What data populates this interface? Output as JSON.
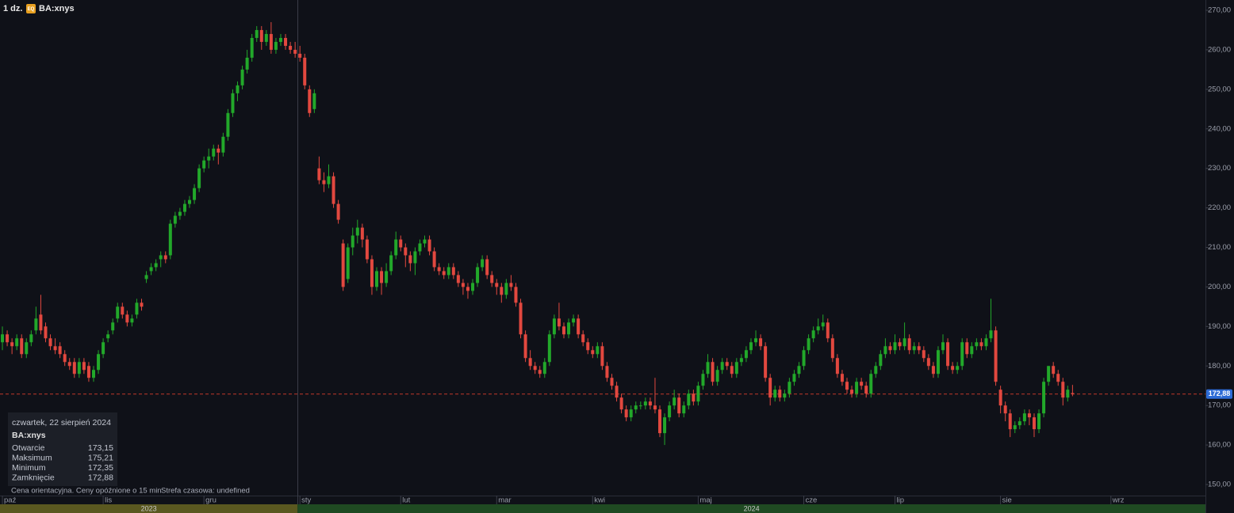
{
  "chart_data": {
    "type": "candlestick",
    "interval": "1 dz.",
    "badge": "EQ",
    "symbol": "BA:xnys",
    "up_color": "#22a82a",
    "down_color": "#e2483f",
    "ylim": [
      147.2,
      272.6
    ],
    "yticks": [
      {
        "value": 150,
        "label": "150,00"
      },
      {
        "value": 160,
        "label": "160,00"
      },
      {
        "value": 170,
        "label": "170,00"
      },
      {
        "value": 180,
        "label": "180,00"
      },
      {
        "value": 190,
        "label": "190,00"
      },
      {
        "value": 200,
        "label": "200,00"
      },
      {
        "value": 210,
        "label": "210,00"
      },
      {
        "value": 220,
        "label": "220,00"
      },
      {
        "value": 230,
        "label": "230,00"
      },
      {
        "value": 240,
        "label": "240,00"
      },
      {
        "value": 250,
        "label": "250,00"
      },
      {
        "value": 260,
        "label": "260,00"
      },
      {
        "value": 270,
        "label": "270,00"
      }
    ],
    "xlim": [
      -0.5,
      250.7
    ],
    "xticks": [
      {
        "value": 0,
        "label": "paź"
      },
      {
        "value": 21,
        "label": "lis"
      },
      {
        "value": 42,
        "label": "gru"
      },
      {
        "value": 62,
        "label": "sty"
      },
      {
        "value": 83,
        "label": "lut"
      },
      {
        "value": 103,
        "label": "mar"
      },
      {
        "value": 123,
        "label": "kwi"
      },
      {
        "value": 145,
        "label": "maj"
      },
      {
        "value": 167,
        "label": "cze"
      },
      {
        "value": 186,
        "label": "lip"
      },
      {
        "value": 208,
        "label": "sie"
      },
      {
        "value": 231,
        "label": "wrz"
      }
    ],
    "years": [
      {
        "label": "2023",
        "start": -0.5,
        "end": 61.5,
        "color": "#5a5820"
      },
      {
        "label": "2024",
        "start": 61.5,
        "end": 250.7,
        "color": "#1f4a22"
      }
    ],
    "last_price": {
      "value": 172.88,
      "label": "172,88"
    },
    "candles": [
      [
        186,
        190,
        184,
        188
      ],
      [
        188,
        189,
        185,
        186
      ],
      [
        186,
        187,
        183,
        185
      ],
      [
        185,
        188,
        184,
        187
      ],
      [
        187,
        188,
        182,
        183
      ],
      [
        183,
        187,
        182,
        186
      ],
      [
        186,
        189,
        185,
        188
      ],
      [
        189,
        195,
        188,
        192
      ],
      [
        193,
        198,
        188,
        189
      ],
      [
        190,
        191,
        186,
        187
      ],
      [
        187,
        188,
        184,
        185
      ],
      [
        185,
        187,
        183,
        184
      ],
      [
        185,
        186,
        182,
        183
      ],
      [
        183,
        184,
        180,
        181
      ],
      [
        181,
        182,
        179,
        180
      ],
      [
        181,
        182,
        177,
        178
      ],
      [
        178,
        182,
        177,
        181
      ],
      [
        181,
        182,
        178,
        179
      ],
      [
        180,
        181,
        176,
        177
      ],
      [
        177,
        180,
        176,
        179
      ],
      [
        179,
        184,
        178,
        183
      ],
      [
        183,
        187,
        182,
        186
      ],
      [
        187,
        189,
        186,
        188
      ],
      [
        189,
        192,
        188,
        191
      ],
      [
        192,
        196,
        191,
        195
      ],
      [
        195,
        196,
        192,
        193
      ],
      [
        193,
        194,
        190,
        191
      ],
      [
        191,
        193,
        190,
        192
      ],
      [
        193,
        197,
        192,
        196
      ],
      [
        196,
        197,
        194,
        195
      ],
      [
        202,
        204,
        201,
        203
      ],
      [
        204,
        206,
        203,
        205
      ],
      [
        205,
        207,
        204,
        206
      ],
      [
        207,
        209,
        205,
        208
      ],
      [
        208,
        209,
        206,
        207
      ],
      [
        208,
        217,
        207,
        216
      ],
      [
        216,
        219,
        215,
        218
      ],
      [
        218,
        220,
        217,
        219
      ],
      [
        219,
        222,
        218,
        221
      ],
      [
        221,
        223,
        220,
        222
      ],
      [
        222,
        226,
        221,
        225
      ],
      [
        225,
        231,
        224,
        230
      ],
      [
        230,
        233,
        229,
        232
      ],
      [
        232,
        235,
        230,
        233
      ],
      [
        233,
        236,
        232,
        235
      ],
      [
        235,
        236,
        231,
        234
      ],
      [
        234,
        239,
        233,
        238
      ],
      [
        238,
        245,
        237,
        244
      ],
      [
        244,
        250,
        243,
        249
      ],
      [
        249,
        252,
        247,
        251
      ],
      [
        251,
        256,
        250,
        255
      ],
      [
        255,
        260,
        254,
        258
      ],
      [
        258,
        264,
        257,
        263
      ],
      [
        263,
        266,
        262,
        265
      ],
      [
        265,
        266,
        260,
        262
      ],
      [
        262,
        265,
        261,
        264
      ],
      [
        264,
        267,
        259,
        260
      ],
      [
        260,
        263,
        259,
        262
      ],
      [
        262,
        264,
        261,
        263
      ],
      [
        263,
        264,
        260,
        261
      ],
      [
        261,
        262,
        259,
        260
      ],
      [
        260,
        262,
        258,
        259
      ],
      [
        259,
        261,
        257,
        258
      ],
      [
        258,
        259,
        250,
        251
      ],
      [
        250,
        251,
        243,
        244
      ],
      [
        245,
        250,
        244,
        249
      ],
      [
        230,
        233,
        226,
        227
      ],
      [
        227,
        229,
        224,
        226
      ],
      [
        226,
        231,
        225,
        228
      ],
      [
        228,
        229,
        220,
        221
      ],
      [
        221,
        222,
        216,
        217
      ],
      [
        211,
        212,
        199,
        200
      ],
      [
        202,
        211,
        201,
        210
      ],
      [
        210,
        215,
        208,
        213
      ],
      [
        213,
        217,
        211,
        215
      ],
      [
        215,
        216,
        210,
        212
      ],
      [
        212,
        213,
        206,
        207
      ],
      [
        207,
        208,
        198,
        200
      ],
      [
        200,
        205,
        199,
        204
      ],
      [
        204,
        205,
        198,
        201
      ],
      [
        201,
        206,
        200,
        204
      ],
      [
        204,
        209,
        203,
        208
      ],
      [
        208,
        214,
        207,
        212
      ],
      [
        212,
        213,
        209,
        210
      ],
      [
        210,
        211,
        205,
        208
      ],
      [
        208,
        209,
        204,
        206
      ],
      [
        206,
        210,
        203,
        209
      ],
      [
        209,
        212,
        208,
        211
      ],
      [
        211,
        213,
        210,
        212
      ],
      [
        212,
        213,
        208,
        209
      ],
      [
        209,
        210,
        204,
        205
      ],
      [
        205,
        206,
        203,
        204
      ],
      [
        204,
        205,
        202,
        203
      ],
      [
        203,
        206,
        202,
        205
      ],
      [
        205,
        206,
        202,
        203
      ],
      [
        203,
        204,
        200,
        201
      ],
      [
        201,
        202,
        198,
        200
      ],
      [
        200,
        201,
        197,
        199
      ],
      [
        199,
        202,
        198,
        201
      ],
      [
        201,
        206,
        200,
        205
      ],
      [
        205,
        208,
        204,
        207
      ],
      [
        207,
        208,
        202,
        203
      ],
      [
        203,
        204,
        200,
        201
      ],
      [
        201,
        202,
        198,
        200
      ],
      [
        200,
        201,
        196,
        198
      ],
      [
        198,
        202,
        197,
        201
      ],
      [
        201,
        203,
        199,
        200
      ],
      [
        200,
        201,
        195,
        196
      ],
      [
        196,
        197,
        187,
        188
      ],
      [
        188,
        189,
        181,
        182
      ],
      [
        182,
        184,
        179,
        180
      ],
      [
        180,
        181,
        178,
        179
      ],
      [
        179,
        180,
        177,
        178
      ],
      [
        178,
        182,
        177,
        181
      ],
      [
        181,
        189,
        180,
        188
      ],
      [
        188,
        193,
        187,
        192
      ],
      [
        192,
        196,
        189,
        190
      ],
      [
        190,
        191,
        187,
        188
      ],
      [
        188,
        192,
        187,
        191
      ],
      [
        191,
        193,
        190,
        192
      ],
      [
        192,
        193,
        187,
        188
      ],
      [
        188,
        189,
        185,
        186
      ],
      [
        186,
        187,
        183,
        184
      ],
      [
        184,
        185,
        182,
        183
      ],
      [
        183,
        186,
        182,
        185
      ],
      [
        185,
        186,
        179,
        180
      ],
      [
        180,
        181,
        176,
        177
      ],
      [
        177,
        178,
        174,
        175
      ],
      [
        175,
        176,
        171,
        172
      ],
      [
        172,
        173,
        168,
        169
      ],
      [
        169,
        170,
        166,
        167
      ],
      [
        167,
        170,
        166,
        169
      ],
      [
        169,
        171,
        168,
        170
      ],
      [
        170,
        171,
        169,
        170
      ],
      [
        170,
        172,
        169,
        171
      ],
      [
        171,
        172,
        169,
        170
      ],
      [
        170,
        177,
        168,
        169
      ],
      [
        169,
        170,
        162,
        163
      ],
      [
        163,
        168,
        160,
        167
      ],
      [
        167,
        171,
        166,
        170
      ],
      [
        170,
        174,
        169,
        172
      ],
      [
        172,
        173,
        167,
        168
      ],
      [
        168,
        171,
        167,
        170
      ],
      [
        170,
        174,
        169,
        173
      ],
      [
        173,
        174,
        170,
        171
      ],
      [
        171,
        176,
        170,
        175
      ],
      [
        175,
        179,
        174,
        178
      ],
      [
        178,
        183,
        177,
        181
      ],
      [
        181,
        182,
        175,
        176
      ],
      [
        176,
        180,
        175,
        179
      ],
      [
        179,
        182,
        178,
        181
      ],
      [
        181,
        182,
        179,
        180
      ],
      [
        180,
        181,
        177,
        178
      ],
      [
        178,
        182,
        177,
        181
      ],
      [
        181,
        183,
        180,
        182
      ],
      [
        182,
        185,
        181,
        184
      ],
      [
        184,
        187,
        183,
        186
      ],
      [
        186,
        189,
        185,
        187
      ],
      [
        187,
        188,
        184,
        185
      ],
      [
        185,
        186,
        176,
        177
      ],
      [
        177,
        178,
        170,
        172
      ],
      [
        172,
        175,
        171,
        174
      ],
      [
        174,
        175,
        171,
        172
      ],
      [
        172,
        174,
        171,
        173
      ],
      [
        173,
        177,
        172,
        176
      ],
      [
        176,
        179,
        175,
        178
      ],
      [
        178,
        181,
        177,
        180
      ],
      [
        180,
        185,
        179,
        184
      ],
      [
        184,
        188,
        183,
        187
      ],
      [
        187,
        190,
        186,
        189
      ],
      [
        189,
        192,
        188,
        190
      ],
      [
        190,
        193,
        189,
        191
      ],
      [
        191,
        192,
        186,
        187
      ],
      [
        187,
        188,
        181,
        182
      ],
      [
        182,
        183,
        177,
        178
      ],
      [
        178,
        179,
        175,
        176
      ],
      [
        176,
        177,
        173,
        174
      ],
      [
        174,
        175,
        172,
        173
      ],
      [
        173,
        177,
        172,
        176
      ],
      [
        176,
        177,
        174,
        175
      ],
      [
        175,
        176,
        172,
        173
      ],
      [
        173,
        179,
        172,
        178
      ],
      [
        178,
        181,
        177,
        180
      ],
      [
        180,
        184,
        179,
        183
      ],
      [
        183,
        187,
        182,
        185
      ],
      [
        185,
        186,
        183,
        184
      ],
      [
        184,
        188,
        183,
        186
      ],
      [
        186,
        187,
        184,
        185
      ],
      [
        185,
        191,
        184,
        187
      ],
      [
        187,
        188,
        183,
        184
      ],
      [
        184,
        186,
        183,
        185
      ],
      [
        185,
        186,
        183,
        184
      ],
      [
        184,
        185,
        181,
        182
      ],
      [
        182,
        183,
        179,
        180
      ],
      [
        180,
        181,
        177,
        178
      ],
      [
        178,
        185,
        177,
        184
      ],
      [
        184,
        188,
        183,
        186
      ],
      [
        186,
        187,
        179,
        180
      ],
      [
        180,
        181,
        178,
        179
      ],
      [
        179,
        181,
        178,
        180
      ],
      [
        180,
        187,
        179,
        186
      ],
      [
        186,
        187,
        182,
        183
      ],
      [
        183,
        186,
        182,
        185
      ],
      [
        185,
        187,
        184,
        186
      ],
      [
        186,
        187,
        184,
        185
      ],
      [
        185,
        188,
        184,
        187
      ],
      [
        187,
        197,
        186,
        189
      ],
      [
        189,
        190,
        175,
        176
      ],
      [
        174,
        175,
        168,
        170
      ],
      [
        170,
        171,
        166,
        168
      ],
      [
        168,
        169,
        162,
        164
      ],
      [
        164,
        166,
        163,
        165
      ],
      [
        165,
        167,
        164,
        166
      ],
      [
        166,
        169,
        165,
        168
      ],
      [
        168,
        169,
        165,
        167
      ],
      [
        167,
        168,
        162,
        164
      ],
      [
        164,
        169,
        163,
        168
      ],
      [
        168,
        177,
        167,
        176
      ],
      [
        176,
        180,
        175,
        180
      ],
      [
        180,
        181,
        177,
        178
      ],
      [
        178,
        179,
        175,
        176
      ],
      [
        176,
        177,
        170,
        172
      ],
      [
        172,
        175,
        171,
        174
      ],
      [
        173.15,
        175.21,
        172.35,
        172.88
      ]
    ],
    "tooltip": {
      "date": "czwartek, 22 sierpień 2024",
      "symbol": "BA:xnys",
      "rows": [
        {
          "label": "Otwarcie",
          "value": 173.15,
          "value_label": "173,15"
        },
        {
          "label": "Maksimum",
          "value": 175.21,
          "value_label": "175,21"
        },
        {
          "label": "Minimum",
          "value": 172.35,
          "value_label": "172,35"
        },
        {
          "label": "Zamknięcie",
          "value": 172.88,
          "value_label": "172,88"
        }
      ]
    },
    "footer_note": "Cena orientacyjna. Ceny opóźnione o 15 min",
    "timezone_note": "Strefa czasowa: undefined"
  }
}
